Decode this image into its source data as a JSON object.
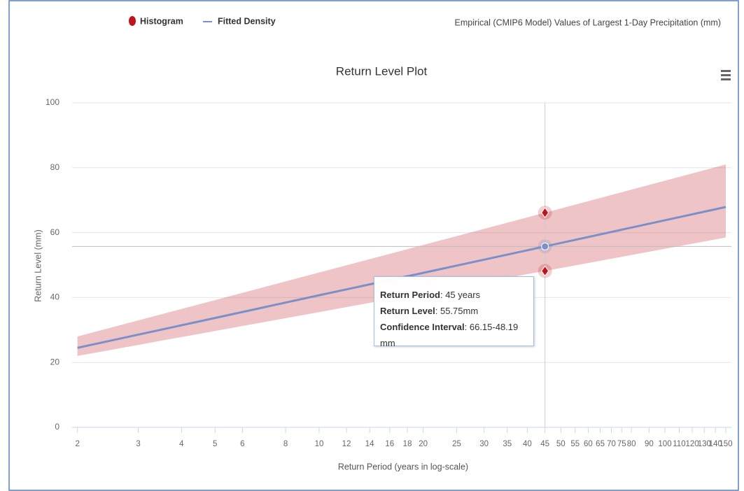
{
  "chart_data": {
    "type": "log-band-line",
    "title": "Return Level Plot",
    "subtitle": "Empirical (CMIP6 Model) Values of Largest 1-Day Precipitation (mm)",
    "x_label": "Return Period (years in log-scale)",
    "y_label": "Return Level (mm)",
    "x_log": true,
    "grid": true,
    "legend": "top-left",
    "xlim": [
      1.93,
      155.7
    ],
    "ylim": [
      0,
      100
    ],
    "xticks": [
      2,
      3,
      4,
      5,
      6,
      8,
      10,
      12,
      14,
      16,
      18,
      20,
      25,
      30,
      35,
      40,
      45,
      50,
      55,
      60,
      65,
      70,
      75,
      80,
      90,
      100,
      110,
      120,
      130,
      140,
      150
    ],
    "yticks": [
      0,
      20,
      40,
      60,
      80,
      100
    ],
    "crosshair": 45,
    "series": [
      {
        "name": "Histogram",
        "color": "#c0141c",
        "x": [
          2,
          5,
          10,
          20,
          45,
          100,
          150
        ],
        "low": [
          22,
          29.7,
          35.5,
          41.4,
          48.19,
          55.0,
          58.5
        ],
        "high": [
          28,
          39.2,
          47.7,
          56.2,
          66.15,
          76.0,
          81
        ]
      },
      {
        "name": "Fitted Density",
        "color": "#7b8fc9",
        "x": [
          2,
          5,
          10,
          20,
          45,
          100,
          150
        ],
        "values": [
          24.5,
          33.7,
          40.7,
          47.6,
          55.75,
          63.8,
          67.9
        ]
      }
    ],
    "tooltip": {
      "lines": [
        {
          "label": "Return Period",
          "text": ": 45 years"
        },
        {
          "label": "Return Level",
          "text": ": 55.75mm"
        },
        {
          "label": "Confidence Interval",
          "text": ": 66.15-48.19 mm"
        }
      ]
    }
  }
}
